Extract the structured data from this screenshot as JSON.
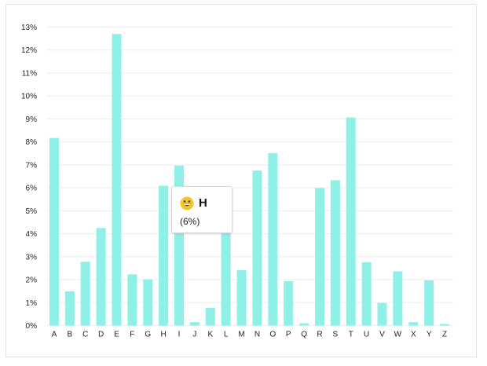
{
  "chart_data": {
    "type": "bar",
    "title": "",
    "xlabel": "",
    "ylabel": "",
    "categories": [
      "A",
      "B",
      "C",
      "D",
      "E",
      "F",
      "G",
      "H",
      "I",
      "J",
      "K",
      "L",
      "M",
      "N",
      "O",
      "P",
      "Q",
      "R",
      "S",
      "T",
      "U",
      "V",
      "W",
      "X",
      "Y",
      "Z"
    ],
    "values": [
      8.17,
      1.49,
      2.78,
      4.25,
      12.7,
      2.23,
      2.02,
      6.09,
      6.97,
      0.15,
      0.77,
      4.03,
      2.41,
      6.75,
      7.51,
      1.93,
      0.1,
      5.99,
      6.33,
      9.06,
      2.76,
      0.98,
      2.36,
      0.15,
      1.97,
      0.07
    ],
    "ylim": [
      0,
      13
    ],
    "y_ticks": [
      "0%",
      "1%",
      "2%",
      "3%",
      "4%",
      "5%",
      "6%",
      "7%",
      "8%",
      "9%",
      "10%",
      "11%",
      "12%",
      "13%"
    ],
    "grid": true,
    "bar_color": "#8ff0e8",
    "grid_color": "#eeeeee"
  },
  "tooltip": {
    "emoji": "grinning-face-emoji",
    "title": "H",
    "value": "(6%)"
  }
}
